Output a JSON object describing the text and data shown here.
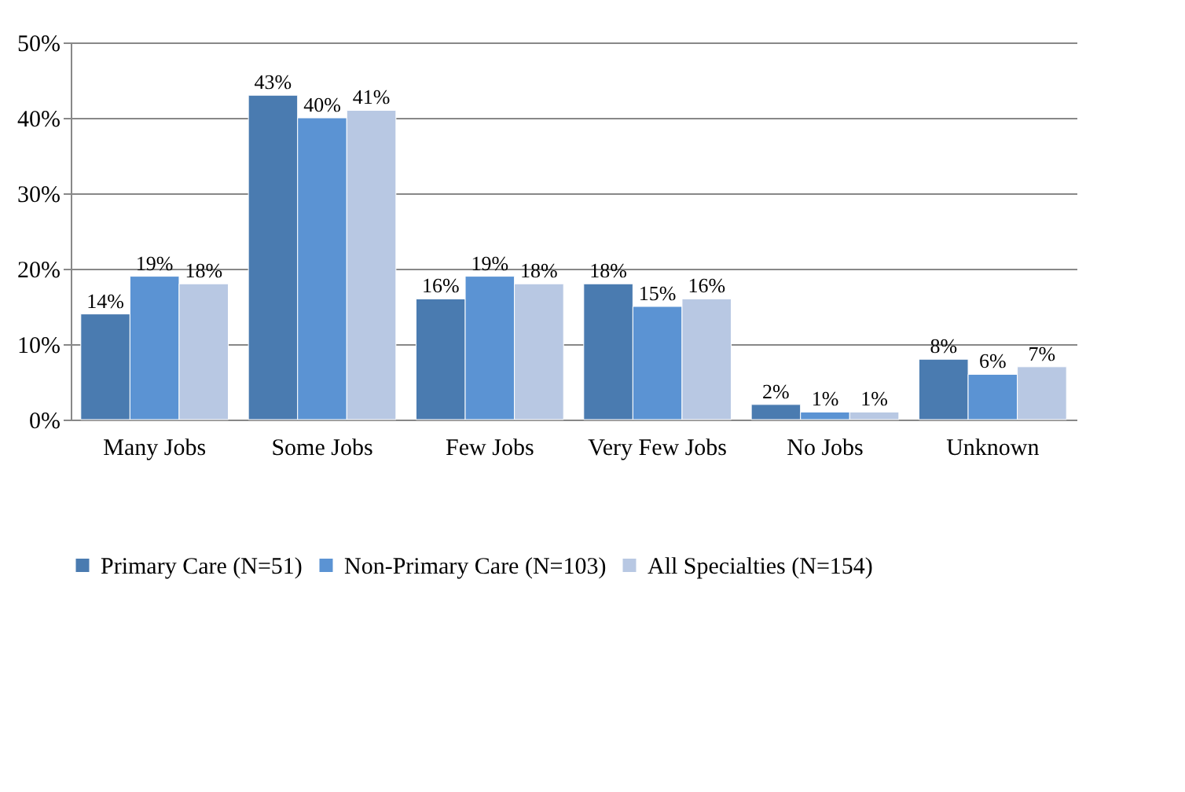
{
  "chart_data": {
    "type": "bar",
    "categories": [
      "Many Jobs",
      "Some Jobs",
      "Few Jobs",
      "Very Few Jobs",
      "No Jobs",
      "Unknown"
    ],
    "series": [
      {
        "name": "Primary Care (N=51)",
        "color": "#4a7bb0",
        "values": [
          14,
          43,
          16,
          18,
          2,
          8
        ],
        "value_labels": [
          "14%",
          "43%",
          "16%",
          "18%",
          "2%",
          "8%"
        ]
      },
      {
        "name": "Non-Primary Care (N=103)",
        "color": "#5b93d3",
        "values": [
          19,
          40,
          19,
          15,
          1,
          6
        ],
        "value_labels": [
          "19%",
          "40%",
          "19%",
          "15%",
          "1%",
          "6%"
        ]
      },
      {
        "name": "All Specialties (N=154)",
        "color": "#b8c8e3",
        "values": [
          18,
          41,
          18,
          16,
          1,
          7
        ],
        "value_labels": [
          "18%",
          "41%",
          "18%",
          "16%",
          "1%",
          "7%"
        ]
      }
    ],
    "ylim": [
      0,
      50
    ],
    "yticks": [
      {
        "value": 0,
        "label": "0%"
      },
      {
        "value": 10,
        "label": "10%"
      },
      {
        "value": 20,
        "label": "20%"
      },
      {
        "value": 30,
        "label": "30%"
      },
      {
        "value": 40,
        "label": "40%"
      },
      {
        "value": 50,
        "label": "50%"
      }
    ],
    "grid": "y",
    "legend": "bottom"
  }
}
